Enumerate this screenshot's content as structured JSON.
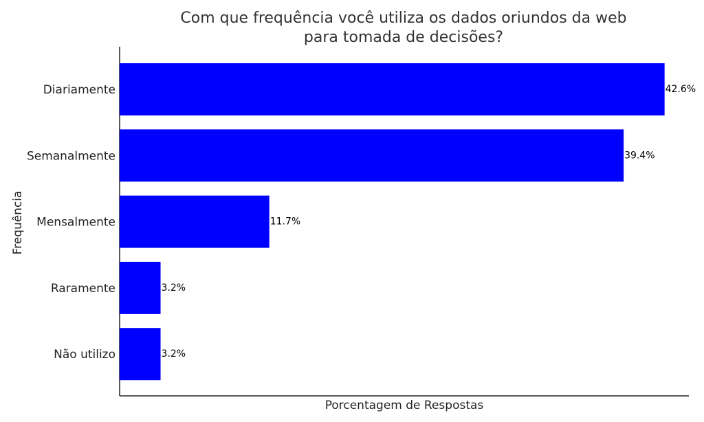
{
  "chart_data": {
    "type": "bar",
    "orientation": "horizontal",
    "title_lines": [
      "Com que frequência você utiliza os dados oriundos da web",
      "para tomada de decisões?"
    ],
    "xlabel": "Porcentagem de Respostas",
    "ylabel": "Frequência",
    "categories": [
      "Diariamente",
      "Semanalmente",
      "Mensalmente",
      "Raramente",
      "Não utilizo"
    ],
    "values": [
      42.6,
      39.4,
      11.7,
      3.2,
      3.2
    ],
    "value_labels": [
      "42.6%",
      "39.4%",
      "11.7%",
      "3.2%",
      "3.2%"
    ],
    "xlim": [
      0,
      44.5
    ],
    "bar_color": "#0000ff",
    "axis_color": "#222222",
    "grid": false,
    "legend": false,
    "x_ticks_shown": false
  }
}
